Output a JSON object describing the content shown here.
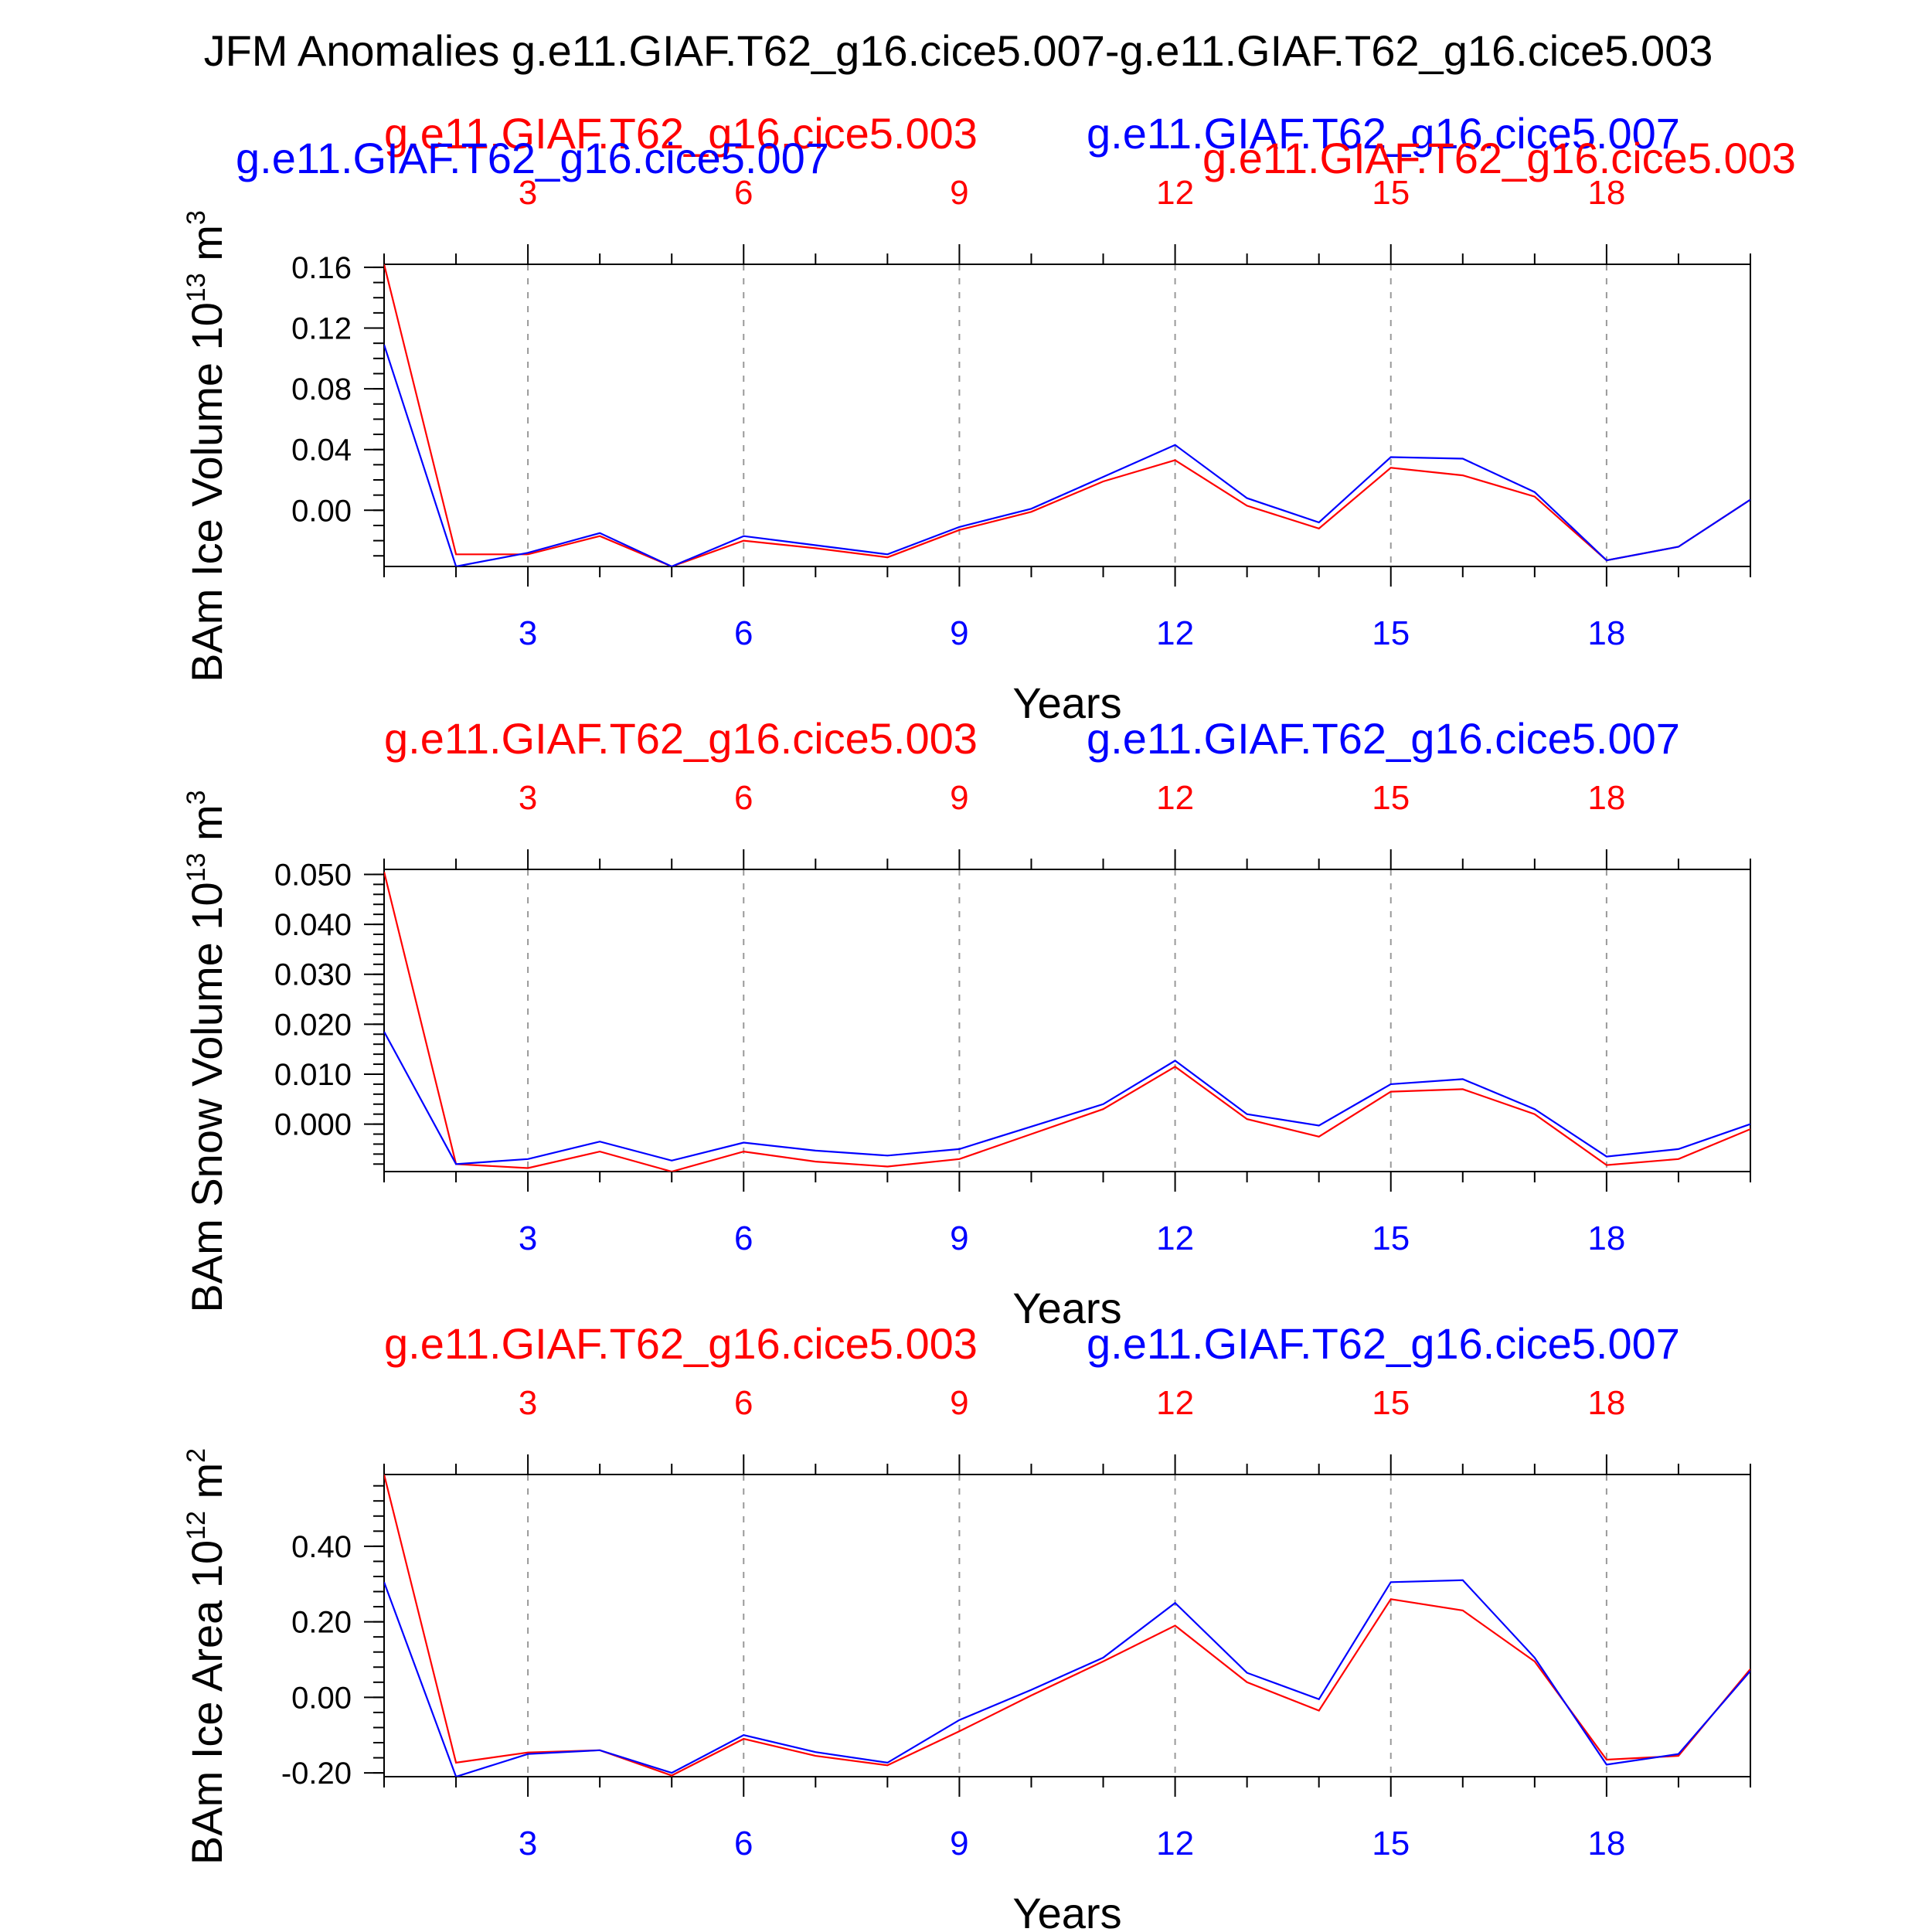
{
  "title": "JFM Anomalies g.e11.GIAF.T62_g16.cice5.007-g.e11.GIAF.T62_g16.cice5.003",
  "colors": {
    "case_a": "#ff0000",
    "case_b": "#0000ff",
    "axis": "#000000",
    "grid": "#999999"
  },
  "chart_data": [
    {
      "type": "line",
      "ylabel": "BAm Ice Volume 10",
      "ylabel_exp": "13",
      "ylabel_unit": " m",
      "ylabel_unit_exp": "3",
      "xlabel": "Years",
      "xlim": [
        1,
        20
      ],
      "ylim": [
        -0.037,
        0.162
      ],
      "ytick_values": [
        0.0,
        0.04,
        0.08,
        0.12,
        0.16
      ],
      "ytick_labels": [
        "0.00",
        "0.04",
        "0.08",
        "0.12",
        "0.16"
      ],
      "yminor_step": 0.01,
      "xticks": [
        3,
        6,
        9,
        12,
        15,
        18
      ],
      "xtick_labels": [
        "3",
        "6",
        "9",
        "12",
        "15",
        "18"
      ],
      "top_labels": [
        "g.e11.GIAF.T62_g16.cice5.003",
        "g.e11.GIAF.T62_g16.cice5.007",
        "g.e11.GIAF.T62_g16.cice5.007",
        "g.e11.GIAF.T62_g16.cice5.003"
      ],
      "x": [
        1,
        2,
        3,
        4,
        5,
        6,
        7,
        8,
        9,
        10,
        11,
        12,
        13,
        14,
        15,
        16,
        17,
        18,
        19,
        20
      ],
      "series": [
        {
          "name": "g.e11.GIAF.T62_g16.cice5.003",
          "color": "red",
          "values": [
            0.162,
            -0.029,
            -0.029,
            -0.017,
            -0.037,
            -0.02,
            -0.025,
            -0.031,
            -0.013,
            -0.001,
            0.019,
            0.033,
            0.003,
            -0.012,
            0.028,
            0.023,
            0.009,
            -0.033,
            -0.024,
            0.007
          ]
        },
        {
          "name": "g.e11.GIAF.T62_g16.cice5.007",
          "color": "blue",
          "values": [
            0.109,
            -0.037,
            -0.028,
            -0.015,
            -0.037,
            -0.017,
            -0.023,
            -0.029,
            -0.011,
            0.001,
            0.022,
            0.043,
            0.008,
            -0.008,
            0.035,
            0.034,
            0.012,
            -0.033,
            -0.024,
            0.007
          ]
        }
      ]
    },
    {
      "type": "line",
      "ylabel": "BAm Snow Volume 10",
      "ylabel_exp": "13",
      "ylabel_unit": " m",
      "ylabel_unit_exp": "3",
      "xlabel": "Years",
      "xlim": [
        1,
        20
      ],
      "ylim": [
        -0.0095,
        0.051
      ],
      "ytick_values": [
        0.0,
        0.01,
        0.02,
        0.03,
        0.04,
        0.05
      ],
      "ytick_labels": [
        "0.000",
        "0.010",
        "0.020",
        "0.030",
        "0.040",
        "0.050"
      ],
      "yminor_step": 0.002,
      "xticks": [
        3,
        6,
        9,
        12,
        15,
        18
      ],
      "xtick_labels": [
        "3",
        "6",
        "9",
        "12",
        "15",
        "18"
      ],
      "top_labels": [
        "g.e11.GIAF.T62_g16.cice5.003",
        "g.e11.GIAF.T62_g16.cice5.007"
      ],
      "x": [
        1,
        2,
        3,
        4,
        5,
        6,
        7,
        8,
        9,
        10,
        11,
        12,
        13,
        14,
        15,
        16,
        17,
        18,
        19,
        20
      ],
      "series": [
        {
          "name": "g.e11.GIAF.T62_g16.cice5.003",
          "color": "red",
          "values": [
            0.0505,
            -0.008,
            -0.0088,
            -0.0055,
            -0.0095,
            -0.0055,
            -0.0075,
            -0.0085,
            -0.007,
            -0.002,
            0.003,
            0.0115,
            0.001,
            -0.0025,
            0.0065,
            0.007,
            0.002,
            -0.0082,
            -0.007,
            -0.001
          ]
        },
        {
          "name": "g.e11.GIAF.T62_g16.cice5.007",
          "color": "blue",
          "values": [
            0.0185,
            -0.008,
            -0.007,
            -0.0035,
            -0.0073,
            -0.0037,
            -0.0053,
            -0.0063,
            -0.005,
            -0.0005,
            0.004,
            0.0127,
            0.002,
            -0.0003,
            0.008,
            0.009,
            0.003,
            -0.0065,
            -0.005,
            0.0
          ]
        }
      ]
    },
    {
      "type": "line",
      "ylabel": "BAm Ice Area 10",
      "ylabel_exp": "12",
      "ylabel_unit": " m",
      "ylabel_unit_exp": "2",
      "xlabel": "Years",
      "xlim": [
        1,
        20
      ],
      "ylim": [
        -0.21,
        0.59
      ],
      "ytick_values": [
        -0.2,
        0.0,
        0.2,
        0.4
      ],
      "ytick_labels": [
        "-0.20",
        "0.00",
        "0.20",
        "0.40"
      ],
      "yminor_step": 0.04,
      "xticks": [
        3,
        6,
        9,
        12,
        15,
        18
      ],
      "xtick_labels": [
        "3",
        "6",
        "9",
        "12",
        "15",
        "18"
      ],
      "top_labels": [
        "g.e11.GIAF.T62_g16.cice5.003",
        "g.e11.GIAF.T62_g16.cice5.007"
      ],
      "x": [
        1,
        2,
        3,
        4,
        5,
        6,
        7,
        8,
        9,
        10,
        11,
        12,
        13,
        14,
        15,
        16,
        17,
        18,
        19,
        20
      ],
      "series": [
        {
          "name": "g.e11.GIAF.T62_g16.cice5.003",
          "color": "red",
          "values": [
            0.59,
            -0.173,
            -0.146,
            -0.14,
            -0.207,
            -0.11,
            -0.155,
            -0.18,
            -0.09,
            0.005,
            0.095,
            0.19,
            0.04,
            -0.035,
            0.26,
            0.23,
            0.095,
            -0.165,
            -0.155,
            0.075
          ]
        },
        {
          "name": "g.e11.GIAF.T62_g16.cice5.007",
          "color": "blue",
          "values": [
            0.305,
            -0.21,
            -0.15,
            -0.14,
            -0.2,
            -0.1,
            -0.145,
            -0.173,
            -0.06,
            0.02,
            0.105,
            0.25,
            0.065,
            -0.005,
            0.305,
            0.31,
            0.105,
            -0.178,
            -0.15,
            0.07
          ]
        }
      ]
    }
  ]
}
